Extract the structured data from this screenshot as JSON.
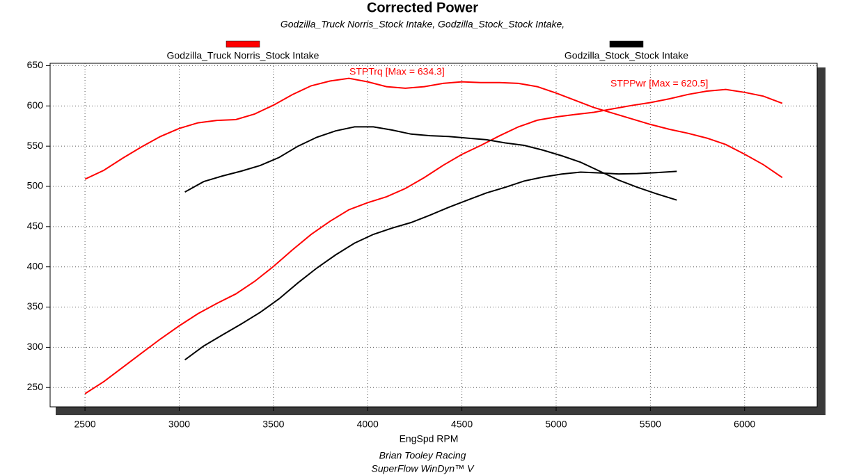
{
  "chart_data": {
    "type": "line",
    "title": "Corrected Power",
    "subtitle": "Godzilla_Truck Norris_Stock Intake, Godzilla_Stock_Stock Intake,",
    "x_label": "EngSpd RPM",
    "footer": [
      "Brian Tooley Racing",
      "SuperFlow WinDyn™ V"
    ],
    "annotations": [
      {
        "text": "STPTrq [Max = 634.3]",
        "color": "#ff0000"
      },
      {
        "text": "STPPwr [Max = 620.5]",
        "color": "#ff0000"
      }
    ],
    "xlim": [
      2315,
      6385
    ],
    "xticks": [
      2500,
      3000,
      3500,
      4000,
      4500,
      5000,
      5500,
      6000
    ],
    "ylim": [
      226,
      653
    ],
    "yticks": [
      250,
      300,
      350,
      400,
      450,
      500,
      550,
      600,
      650
    ],
    "grid": true,
    "series": [
      {
        "name": "Godzilla_Truck Norris_Stock Intake",
        "color": "#ff0000",
        "x": [
          2500,
          2600,
          2700,
          2800,
          2900,
          3000,
          3100,
          3200,
          3300,
          3400,
          3500,
          3600,
          3700,
          3800,
          3900,
          4000,
          4100,
          4200,
          4300,
          4400,
          4500,
          4600,
          4700,
          4800,
          4900,
          5000,
          5100,
          5200,
          5300,
          5400,
          5500,
          5600,
          5700,
          5800,
          5900,
          6000,
          6100,
          6200
        ],
        "torque": [
          509,
          520,
          535,
          549,
          562,
          572,
          579,
          582,
          583,
          590,
          601,
          614,
          625,
          631,
          634.3,
          630,
          624,
          622,
          624,
          628,
          630,
          629,
          629,
          628,
          624,
          616,
          607,
          598,
          591,
          584,
          577,
          571,
          566,
          560,
          552,
          540,
          527,
          511
        ],
        "power": [
          242.3,
          257.4,
          275.0,
          292.7,
          310.3,
          326.7,
          341.8,
          354.6,
          366.3,
          381.9,
          400.5,
          420.9,
          440.3,
          456.6,
          471.0,
          479.8,
          487.1,
          497.4,
          510.9,
          526.1,
          539.8,
          550.9,
          562.9,
          574.0,
          582.2,
          586.4,
          589.4,
          592.1,
          596.4,
          600.5,
          604.2,
          608.8,
          614.3,
          618.4,
          620.5,
          616.9,
          612.1,
          603.2
        ]
      },
      {
        "name": "Godzilla_Stock_Stock Intake",
        "color": "#000000",
        "x": [
          3030,
          3130,
          3230,
          3330,
          3430,
          3530,
          3630,
          3730,
          3830,
          3930,
          4030,
          4130,
          4230,
          4330,
          4430,
          4530,
          4630,
          4730,
          4830,
          4930,
          5030,
          5130,
          5230,
          5330,
          5430,
          5530,
          5640
        ],
        "torque": [
          493,
          506,
          513,
          519,
          526,
          536,
          550,
          561,
          569,
          574,
          574,
          570,
          565,
          563,
          562,
          560,
          558,
          554,
          551,
          545,
          538,
          530,
          519,
          508,
          499,
          491,
          483
        ],
        "power": [
          284.4,
          301.6,
          315.5,
          329.1,
          343.5,
          360.3,
          380.1,
          398.4,
          414.9,
          429.5,
          440.4,
          448.2,
          455.1,
          464.2,
          474.0,
          483.0,
          491.9,
          498.9,
          506.7,
          511.6,
          515.3,
          517.7,
          516.8,
          515.5,
          515.9,
          517.0,
          518.7
        ]
      }
    ]
  }
}
